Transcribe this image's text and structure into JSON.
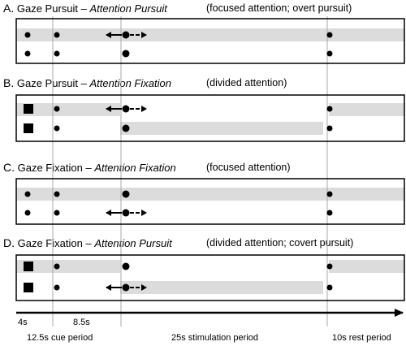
{
  "panels": [
    {
      "letter": "A.",
      "gaze": "Gaze Pursuit",
      "attention": "Attention Pursuit",
      "note": "(focused attention; overt pursuit)"
    },
    {
      "letter": "B.",
      "gaze": "Gaze Pursuit",
      "attention": "Attention Fixation",
      "note": "(divided attention)"
    },
    {
      "letter": "C.",
      "gaze": "Gaze Fixation",
      "attention": "Attention Fixation",
      "note": "(focused attention)"
    },
    {
      "letter": "D.",
      "gaze": "Gaze Fixation",
      "attention": "Attention Pursuit",
      "note": "(divided attention; covert pursuit)"
    }
  ],
  "dash": "–",
  "timeline": {
    "t1": "4s",
    "t2": "8.5s",
    "cue": "12.5s cue period",
    "stim": "25s stimulation period",
    "rest": "10s rest period"
  },
  "colors": {
    "band": "#dcdcdc",
    "divider": "#aaaaaa",
    "ink": "#000000"
  }
}
